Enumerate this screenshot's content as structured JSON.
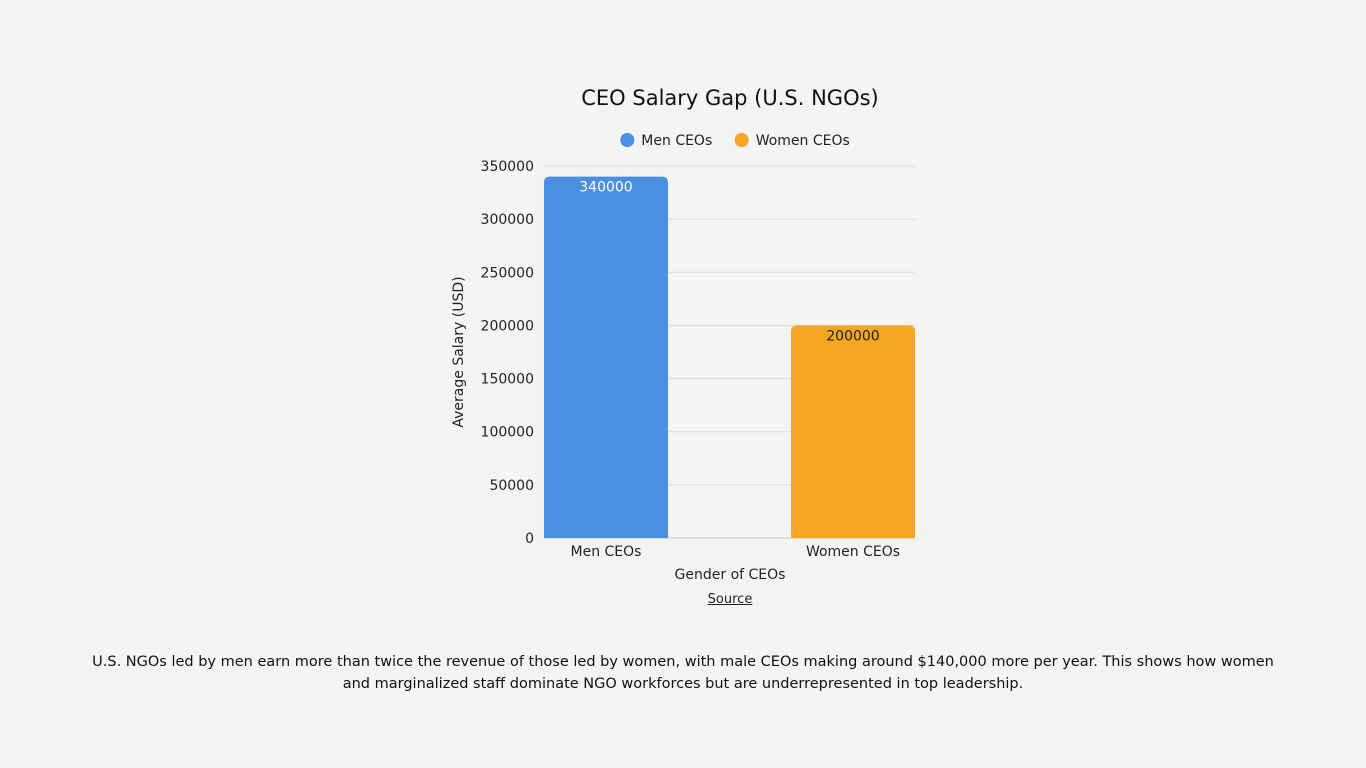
{
  "chart_data": {
    "type": "bar",
    "title": "CEO Salary Gap (U.S. NGOs)",
    "categories": [
      "Men CEOs",
      "Women CEOs"
    ],
    "series": [
      {
        "name": "Men CEOs",
        "values": [
          340000,
          null
        ],
        "color": "#4a90e2"
      },
      {
        "name": "Women CEOs",
        "values": [
          null,
          200000
        ],
        "color": "#f5a623"
      }
    ],
    "data_labels": [
      "340000",
      "200000"
    ],
    "data_label_colors": [
      "#ffffff",
      "#222222"
    ],
    "xlabel": "Gender of CEOs",
    "ylabel": "Average Salary (USD)",
    "ylim": [
      0,
      350000
    ],
    "yticks": [
      0,
      50000,
      100000,
      150000,
      200000,
      250000,
      300000,
      350000
    ],
    "grid": true,
    "legend_position": "top"
  },
  "source_link": "Source",
  "caption": "U.S. NGOs led by men earn more than twice the revenue of those led by women, with male CEOs making around $140,000 more per year. This shows how women and marginalized staff dominate NGO workforces but are underrepresented in top leadership."
}
